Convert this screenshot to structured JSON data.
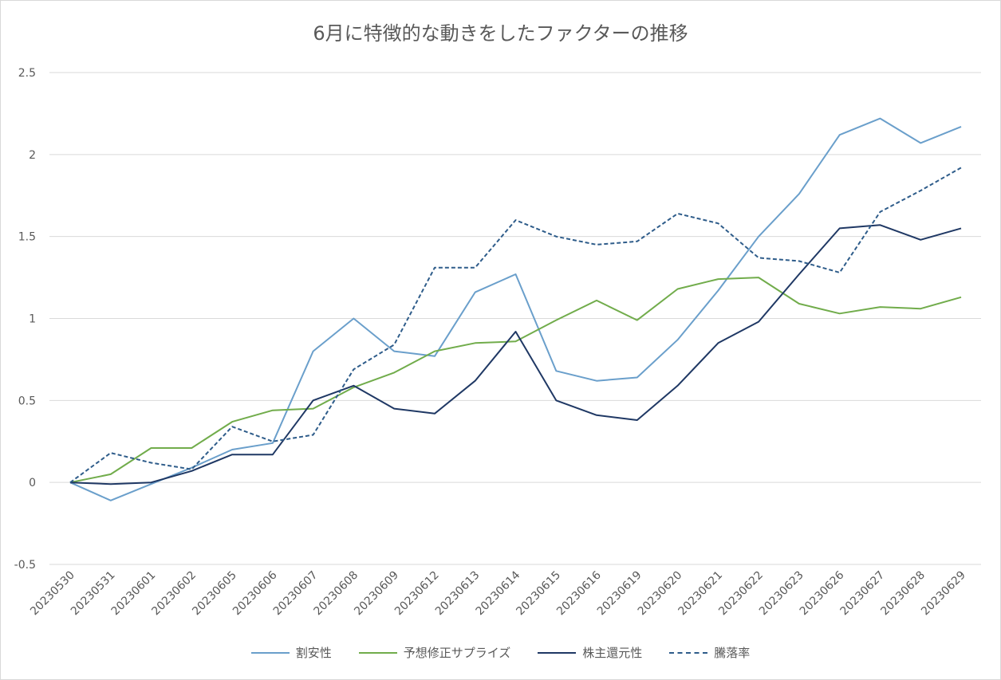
{
  "chart_data": {
    "type": "line",
    "title": "6月に特徴的な動きをしたファクターの推移",
    "xlabel": "",
    "ylabel": "",
    "ylim": [
      -0.5,
      2.5
    ],
    "yticks": [
      "-0.5",
      "0",
      "0.5",
      "1",
      "1.5",
      "2",
      "2.5"
    ],
    "categories": [
      "20230530",
      "20230531",
      "20230601",
      "20230602",
      "20230605",
      "20230606",
      "20230607",
      "20230608",
      "20230609",
      "20230612",
      "20230613",
      "20230614",
      "20230615",
      "20230616",
      "20230619",
      "20230620",
      "20230621",
      "20230622",
      "20230623",
      "20230626",
      "20230627",
      "20230628",
      "20230629"
    ],
    "grid": true,
    "legend_position": "bottom",
    "series": [
      {
        "name": "割安性",
        "color": "#6a9fcb",
        "dash": "solid",
        "values": [
          0,
          -0.11,
          -0.01,
          0.09,
          0.2,
          0.24,
          0.8,
          1.0,
          0.8,
          0.77,
          1.16,
          1.27,
          0.68,
          0.62,
          0.64,
          0.87,
          1.17,
          1.5,
          1.76,
          2.12,
          2.22,
          2.07,
          2.17
        ]
      },
      {
        "name": "予想修正サプライズ",
        "color": "#71ac4b",
        "dash": "solid",
        "values": [
          0,
          0.05,
          0.21,
          0.21,
          0.37,
          0.44,
          0.45,
          0.58,
          0.67,
          0.8,
          0.85,
          0.86,
          0.99,
          1.11,
          0.99,
          1.18,
          1.24,
          1.25,
          1.09,
          1.03,
          1.07,
          1.06,
          1.13
        ]
      },
      {
        "name": "株主還元性",
        "color": "#1f3864",
        "dash": "solid",
        "values": [
          0,
          -0.01,
          0,
          0.07,
          0.17,
          0.17,
          0.5,
          0.59,
          0.45,
          0.42,
          0.62,
          0.92,
          0.5,
          0.41,
          0.38,
          0.59,
          0.85,
          0.98,
          1.27,
          1.55,
          1.57,
          1.48,
          1.55
        ]
      },
      {
        "name": "騰落率",
        "color": "#2e5c8a",
        "dash": "dashed",
        "values": [
          0,
          0.18,
          0.12,
          0.08,
          0.34,
          0.25,
          0.29,
          0.69,
          0.84,
          1.31,
          1.31,
          1.6,
          1.5,
          1.45,
          1.47,
          1.64,
          1.58,
          1.37,
          1.35,
          1.28,
          1.65,
          1.78,
          1.92
        ]
      }
    ]
  }
}
